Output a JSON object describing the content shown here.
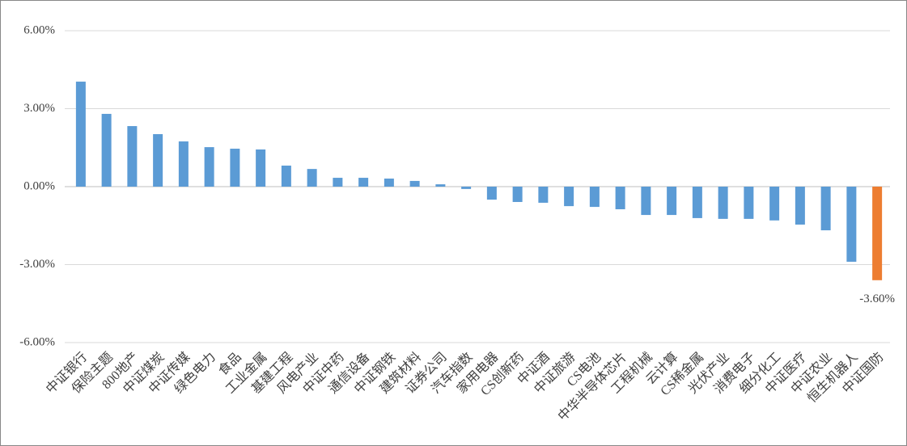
{
  "chart_data": {
    "type": "bar",
    "categories": [
      "中证银行",
      "保险主题",
      "800地产",
      "中证煤炭",
      "中证传媒",
      "绿色电力",
      "食品",
      "工业金属",
      "基建工程",
      "风电产业",
      "中证中药",
      "通信设备",
      "中证钢铁",
      "建筑材料",
      "证券公司",
      "汽车指数",
      "家用电器",
      "CS创新药",
      "中证酒",
      "中证旅游",
      "CS电池",
      "中华半导体芯片",
      "工程机械",
      "云计算",
      "CS稀金属",
      "光伏产业",
      "消费电子",
      "细分化工",
      "中证医疗",
      "中证农业",
      "恒生机器人",
      "中证国防"
    ],
    "values": [
      4.04,
      2.8,
      2.33,
      2.02,
      1.74,
      1.52,
      1.46,
      1.43,
      0.81,
      0.68,
      0.34,
      0.34,
      0.31,
      0.22,
      0.09,
      -0.09,
      -0.5,
      -0.59,
      -0.62,
      -0.75,
      -0.78,
      -0.87,
      -1.09,
      -1.09,
      -1.21,
      -1.24,
      -1.24,
      -1.3,
      -1.46,
      -1.68,
      -2.89,
      -3.6
    ],
    "value_labels": [
      null,
      null,
      null,
      null,
      null,
      null,
      null,
      null,
      null,
      null,
      null,
      null,
      null,
      null,
      null,
      null,
      null,
      null,
      null,
      null,
      null,
      null,
      null,
      null,
      null,
      null,
      null,
      null,
      null,
      null,
      null,
      "-3.60%"
    ],
    "colors": [
      "#5b9bd5",
      "#5b9bd5",
      "#5b9bd5",
      "#5b9bd5",
      "#5b9bd5",
      "#5b9bd5",
      "#5b9bd5",
      "#5b9bd5",
      "#5b9bd5",
      "#5b9bd5",
      "#5b9bd5",
      "#5b9bd5",
      "#5b9bd5",
      "#5b9bd5",
      "#5b9bd5",
      "#5b9bd5",
      "#5b9bd5",
      "#5b9bd5",
      "#5b9bd5",
      "#5b9bd5",
      "#5b9bd5",
      "#5b9bd5",
      "#5b9bd5",
      "#5b9bd5",
      "#5b9bd5",
      "#5b9bd5",
      "#5b9bd5",
      "#5b9bd5",
      "#5b9bd5",
      "#5b9bd5",
      "#5b9bd5",
      "#ed7d31"
    ],
    "ylim": [
      -6,
      6
    ],
    "yticks": [
      {
        "value": -6,
        "label": "-6.00%"
      },
      {
        "value": -3,
        "label": "-3.00%"
      },
      {
        "value": 0,
        "label": "0.00%"
      },
      {
        "value": 3,
        "label": "3.00%"
      },
      {
        "value": 6,
        "label": "6.00%"
      }
    ],
    "grid": true
  }
}
